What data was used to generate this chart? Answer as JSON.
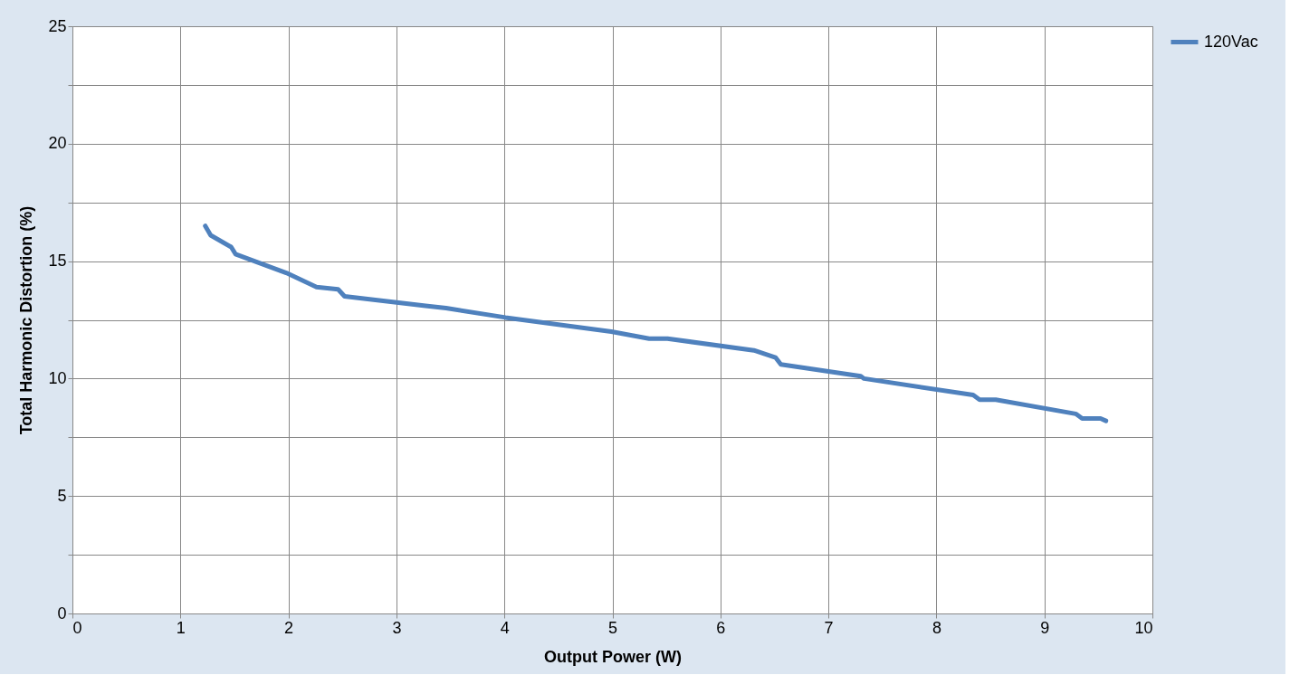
{
  "chart_data": {
    "type": "line",
    "xlabel": "Output Power (W)",
    "ylabel": "Total Harmonic Distortion (%)",
    "xlim": [
      0,
      10
    ],
    "xticks": [
      0,
      1,
      2,
      3,
      4,
      5,
      6,
      7,
      8,
      9,
      10
    ],
    "ylim": [
      0,
      25
    ],
    "yticks": [
      0,
      {
        "value": 2.5,
        "label": null
      },
      5,
      {
        "value": 7.5,
        "label": null
      },
      10,
      {
        "value": 12.5,
        "label": null
      },
      15,
      {
        "value": 17.5,
        "label": null
      },
      20,
      {
        "value": 22.5,
        "label": null
      },
      25
    ],
    "grid": true,
    "legend": "right",
    "marker": "none",
    "line_style": "solid",
    "series": [
      {
        "name": "120Vac",
        "color": "#4f81bd",
        "x": [
          1.23,
          1.28,
          1.47,
          1.51,
          1.98,
          2.26,
          2.46,
          2.52,
          3.27,
          3.46,
          4.01,
          4.99,
          5.34,
          5.51,
          6.31,
          6.51,
          6.56,
          7.3,
          7.33,
          8.34,
          8.4,
          8.55,
          9.29,
          9.35,
          9.52,
          9.57
        ],
        "values": [
          16.5,
          16.1,
          15.6,
          15.3,
          14.5,
          13.9,
          13.8,
          13.5,
          13.1,
          13.0,
          12.6,
          12.0,
          11.7,
          11.7,
          11.2,
          10.9,
          10.6,
          10.1,
          10.0,
          9.3,
          9.1,
          9.1,
          8.5,
          8.3,
          8.3,
          8.2
        ]
      }
    ]
  }
}
